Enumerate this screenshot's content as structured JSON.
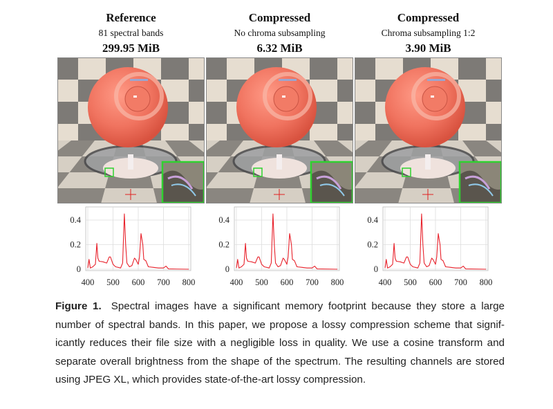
{
  "panels": [
    {
      "title": "Reference",
      "subtitle": "81 spectral bands",
      "size": "299.95 MiB"
    },
    {
      "title": "Compressed",
      "subtitle": "No chroma subsampling",
      "size": "6.32 MiB"
    },
    {
      "title": "Compressed",
      "subtitle": "Chroma subsampling 1:2",
      "size": "3.90 MiB"
    }
  ],
  "colors": {
    "spectrum": "#e8202a",
    "inset_border": "#2fd12f",
    "crosshair": "#e02020",
    "sphere": "#f0735f"
  },
  "chart_data": [
    {
      "type": "line",
      "xlim": [
        400,
        800
      ],
      "ylim": [
        0,
        0.5
      ],
      "grid": true,
      "xticks": [
        "400",
        "500",
        "600",
        "700",
        "800"
      ],
      "yticks": [
        "0",
        "0.2",
        "0.4"
      ],
      "x": [
        400,
        405,
        410,
        420,
        430,
        436,
        440,
        445,
        460,
        475,
        485,
        490,
        500,
        510,
        530,
        538,
        545,
        550,
        555,
        565,
        575,
        585,
        590,
        600,
        605,
        611,
        618,
        622,
        630,
        640,
        660,
        680,
        700,
        710,
        720,
        800
      ],
      "y": [
        0.01,
        0.08,
        0.01,
        0.02,
        0.04,
        0.21,
        0.09,
        0.065,
        0.06,
        0.05,
        0.1,
        0.1,
        0.04,
        0.02,
        0.01,
        0.05,
        0.45,
        0.2,
        0.05,
        0.02,
        0.03,
        0.09,
        0.08,
        0.04,
        0.1,
        0.29,
        0.2,
        0.08,
        0.07,
        0.02,
        0.015,
        0.01,
        0.01,
        0.025,
        0.002,
        0.0
      ]
    },
    {
      "type": "line",
      "xlim": [
        400,
        800
      ],
      "ylim": [
        0,
        0.5
      ],
      "grid": true,
      "xticks": [
        "400",
        "500",
        "600",
        "700",
        "800"
      ],
      "yticks": [
        "0",
        "0.2",
        "0.4"
      ],
      "x": [
        400,
        405,
        410,
        420,
        430,
        436,
        440,
        445,
        460,
        475,
        485,
        490,
        500,
        510,
        530,
        538,
        545,
        550,
        555,
        565,
        575,
        585,
        590,
        600,
        605,
        611,
        618,
        622,
        630,
        640,
        660,
        680,
        700,
        710,
        720,
        800
      ],
      "y": [
        0.01,
        0.08,
        0.01,
        0.02,
        0.04,
        0.21,
        0.09,
        0.065,
        0.06,
        0.05,
        0.1,
        0.1,
        0.04,
        0.02,
        0.01,
        0.05,
        0.45,
        0.2,
        0.05,
        0.02,
        0.03,
        0.09,
        0.08,
        0.04,
        0.1,
        0.29,
        0.2,
        0.08,
        0.07,
        0.02,
        0.015,
        0.01,
        0.01,
        0.025,
        0.002,
        0.0
      ]
    },
    {
      "type": "line",
      "xlim": [
        400,
        800
      ],
      "ylim": [
        0,
        0.5
      ],
      "grid": true,
      "xticks": [
        "400",
        "500",
        "600",
        "700",
        "800"
      ],
      "yticks": [
        "0",
        "0.2",
        "0.4"
      ],
      "x": [
        400,
        405,
        410,
        420,
        430,
        436,
        440,
        445,
        460,
        475,
        485,
        490,
        500,
        510,
        530,
        538,
        545,
        550,
        555,
        565,
        575,
        585,
        590,
        600,
        605,
        611,
        618,
        622,
        630,
        640,
        660,
        680,
        700,
        710,
        720,
        800
      ],
      "y": [
        0.01,
        0.08,
        0.01,
        0.02,
        0.04,
        0.21,
        0.09,
        0.065,
        0.06,
        0.05,
        0.1,
        0.1,
        0.04,
        0.02,
        0.01,
        0.05,
        0.45,
        0.2,
        0.05,
        0.02,
        0.03,
        0.09,
        0.08,
        0.04,
        0.1,
        0.29,
        0.2,
        0.08,
        0.07,
        0.02,
        0.015,
        0.01,
        0.01,
        0.025,
        0.002,
        0.0
      ]
    }
  ],
  "caption": {
    "label": "Figure 1.",
    "lines": [
      "Spectral images have a significant memory footprint because they store a large",
      "number of spectral bands. In this paper, we propose a lossy compression scheme that signif-",
      "icantly reduces their file size with a negligible loss in quality. We use a cosine transform and",
      "separate overall brightness from the shape of the spectrum. The resulting channels are stored",
      "using JPEG XL, which provides state-of-the-art lossy compression."
    ]
  }
}
